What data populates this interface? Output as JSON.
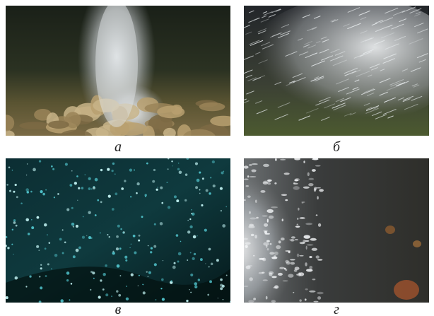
{
  "panels": [
    {
      "label": "а"
    },
    {
      "label": "б"
    },
    {
      "label": "в"
    },
    {
      "label": "г"
    }
  ]
}
